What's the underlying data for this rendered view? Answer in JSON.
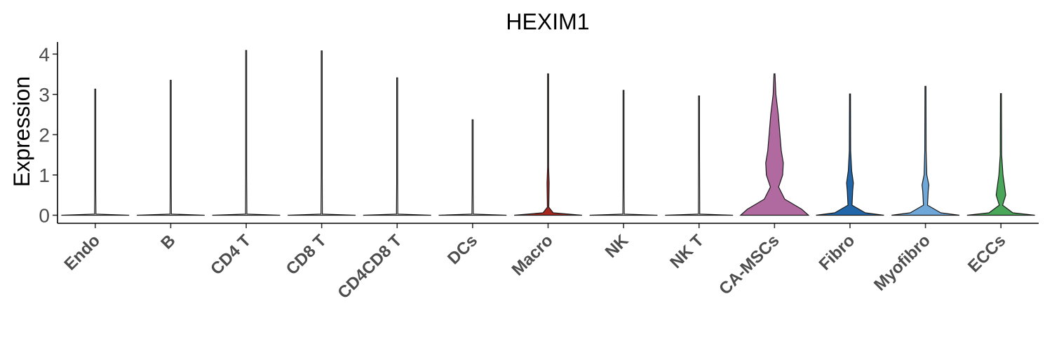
{
  "chart_data": {
    "type": "violin",
    "title": "HEXIM1",
    "xlabel": "",
    "ylabel": "Expression",
    "ylim": [
      -0.2,
      4.3
    ],
    "yticks": [
      0,
      1,
      2,
      3,
      4
    ],
    "grid": false,
    "legend": "none",
    "categories": [
      "Endo",
      "B",
      "CD4 T",
      "CD8 T",
      "CD4CD8 T",
      "DCs",
      "Macro",
      "NK",
      "NK T",
      "CA-MSCs",
      "Fibro",
      "Myofibro",
      "ECCs"
    ],
    "series": [
      {
        "category": "Endo",
        "color": "#f2f2f2",
        "max": 3.13,
        "profile": [
          [
            0,
            1
          ],
          [
            0.03,
            0.02
          ],
          [
            0.6,
            0.005
          ],
          [
            3.13,
            0
          ]
        ]
      },
      {
        "category": "B",
        "color": "#f2f2f2",
        "max": 3.35,
        "profile": [
          [
            0,
            1
          ],
          [
            0.03,
            0.02
          ],
          [
            0.8,
            0.005
          ],
          [
            3.35,
            0
          ]
        ]
      },
      {
        "category": "CD4 T",
        "color": "#f2f2f2",
        "max": 4.09,
        "profile": [
          [
            0,
            1
          ],
          [
            0.03,
            0.02
          ],
          [
            1.0,
            0.005
          ],
          [
            4.09,
            0
          ]
        ]
      },
      {
        "category": "CD8 T",
        "color": "#f2f2f2",
        "max": 4.08,
        "profile": [
          [
            0,
            1
          ],
          [
            0.03,
            0.02
          ],
          [
            1.0,
            0.005
          ],
          [
            4.08,
            0
          ]
        ]
      },
      {
        "category": "CD4CD8 T",
        "color": "#f2f2f2",
        "max": 3.41,
        "profile": [
          [
            0,
            1
          ],
          [
            0.03,
            0.02
          ],
          [
            0.8,
            0.005
          ],
          [
            3.41,
            0
          ]
        ]
      },
      {
        "category": "DCs",
        "color": "#f2f2f2",
        "max": 2.37,
        "profile": [
          [
            0,
            1
          ],
          [
            0.03,
            0.02
          ],
          [
            0.6,
            0.005
          ],
          [
            2.37,
            0
          ]
        ]
      },
      {
        "category": "Macro",
        "color": "#a6271f",
        "max": 3.51,
        "profile": [
          [
            0,
            1
          ],
          [
            0.06,
            0.15
          ],
          [
            0.2,
            0.02
          ],
          [
            0.8,
            0.03
          ],
          [
            1.2,
            0.015
          ],
          [
            3.51,
            0
          ]
        ]
      },
      {
        "category": "NK",
        "color": "#f2f2f2",
        "max": 3.1,
        "profile": [
          [
            0,
            1
          ],
          [
            0.03,
            0.02
          ],
          [
            0.7,
            0.005
          ],
          [
            3.1,
            0
          ]
        ]
      },
      {
        "category": "NK T",
        "color": "#f2f2f2",
        "max": 2.96,
        "profile": [
          [
            0,
            1
          ],
          [
            0.03,
            0.02
          ],
          [
            1.6,
            0.01
          ],
          [
            2.96,
            0
          ]
        ]
      },
      {
        "category": "CA-MSCs",
        "color": "#b06a9f",
        "max": 3.51,
        "profile": [
          [
            0,
            1
          ],
          [
            0.15,
            0.8
          ],
          [
            0.4,
            0.3
          ],
          [
            0.7,
            0.12
          ],
          [
            1.0,
            0.24
          ],
          [
            1.3,
            0.26
          ],
          [
            1.6,
            0.2
          ],
          [
            2.0,
            0.16
          ],
          [
            2.5,
            0.11
          ],
          [
            3.0,
            0.04
          ],
          [
            3.51,
            0
          ]
        ]
      },
      {
        "category": "Fibro",
        "color": "#2166a8",
        "max": 3.01,
        "profile": [
          [
            0,
            1
          ],
          [
            0.06,
            0.45
          ],
          [
            0.25,
            0.06
          ],
          [
            0.6,
            0.08
          ],
          [
            0.8,
            0.1
          ],
          [
            1.1,
            0.05
          ],
          [
            1.6,
            0.02
          ],
          [
            3.01,
            0
          ]
        ]
      },
      {
        "category": "Myofibro",
        "color": "#6fa7d8",
        "max": 3.2,
        "profile": [
          [
            0,
            1
          ],
          [
            0.06,
            0.45
          ],
          [
            0.25,
            0.06
          ],
          [
            0.6,
            0.08
          ],
          [
            0.75,
            0.1
          ],
          [
            1.0,
            0.04
          ],
          [
            1.6,
            0.02
          ],
          [
            3.2,
            0
          ]
        ]
      },
      {
        "category": "ECCs",
        "color": "#4aa75a",
        "max": 3.02,
        "profile": [
          [
            0,
            1
          ],
          [
            0.06,
            0.35
          ],
          [
            0.25,
            0.05
          ],
          [
            0.5,
            0.14
          ],
          [
            0.7,
            0.11
          ],
          [
            1.0,
            0.06
          ],
          [
            1.5,
            0.02
          ],
          [
            3.02,
            0
          ]
        ]
      }
    ]
  }
}
